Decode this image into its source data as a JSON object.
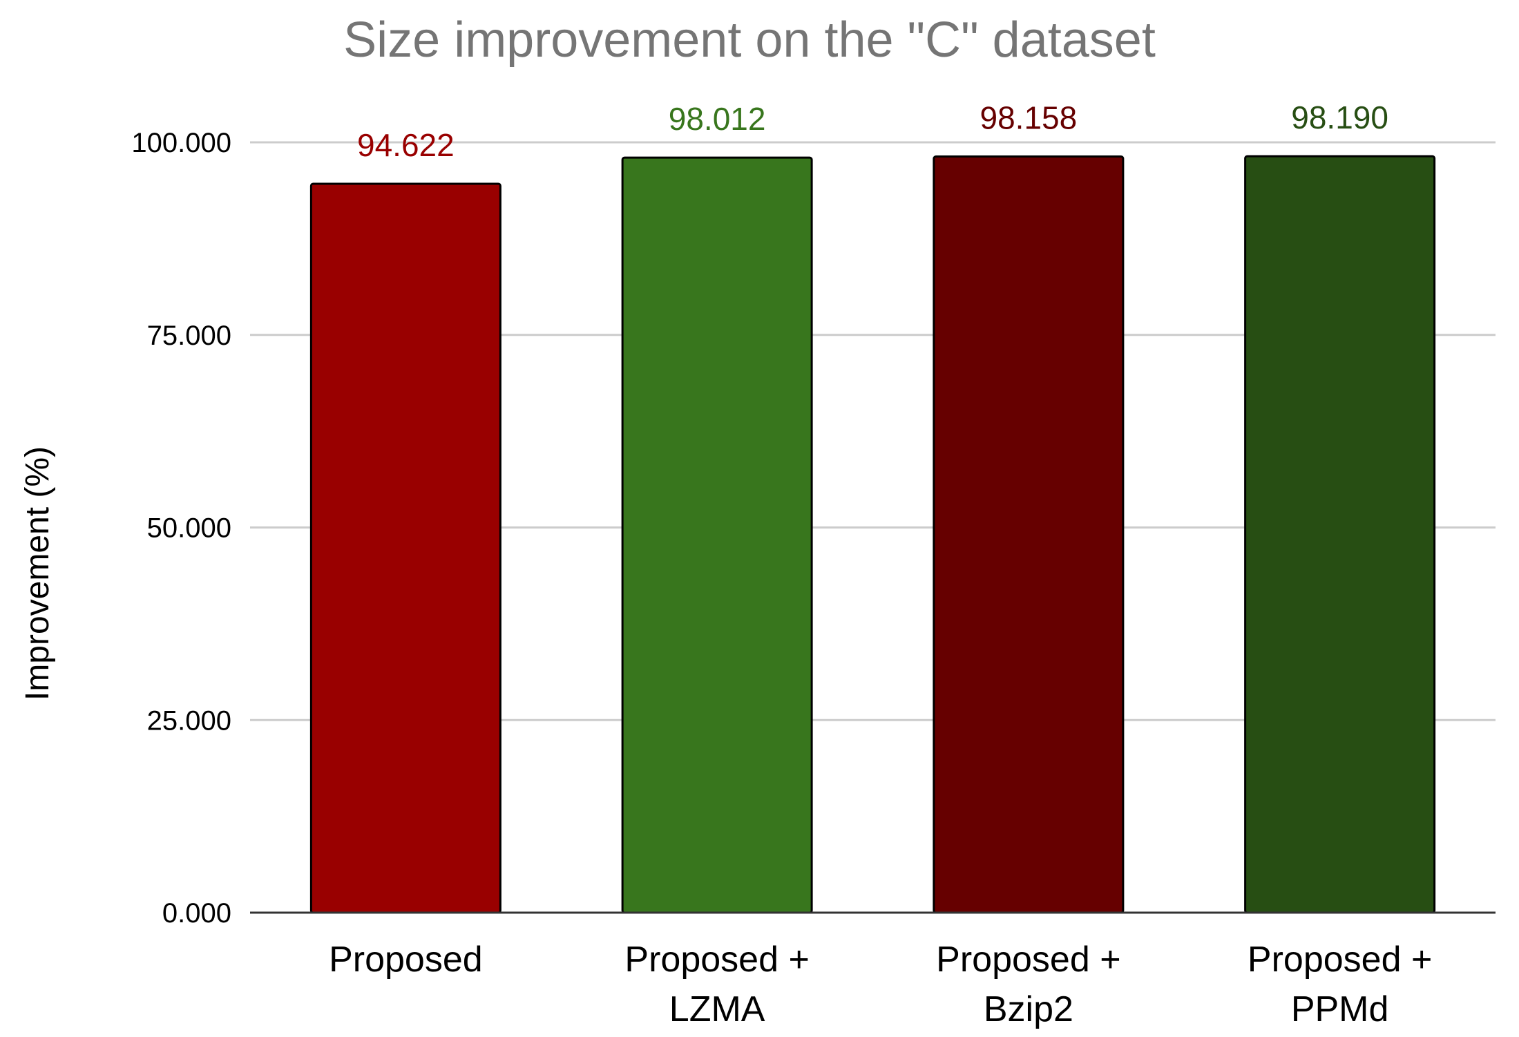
{
  "chart_data": {
    "type": "bar",
    "title": "Size improvement on the \"C\" dataset",
    "ylabel": "Improvement (%)",
    "xlabel": "",
    "categories": [
      [
        "Proposed"
      ],
      [
        "Proposed +",
        "LZMA"
      ],
      [
        "Proposed +",
        "Bzip2"
      ],
      [
        "Proposed +",
        "PPMd"
      ]
    ],
    "values": [
      94.622,
      98.012,
      98.158,
      98.19
    ],
    "value_labels": [
      "94.622",
      "98.012",
      "98.158",
      "98.190"
    ],
    "bar_colors": [
      "#990000",
      "#38761d",
      "#660000",
      "#274e13"
    ],
    "ylim": [
      0,
      100
    ],
    "yticks": [
      0,
      25,
      50,
      75,
      100
    ],
    "ytick_labels": [
      "0.000",
      "25.000",
      "50.000",
      "75.000",
      "100.000"
    ],
    "grid": true,
    "legend": "none"
  }
}
